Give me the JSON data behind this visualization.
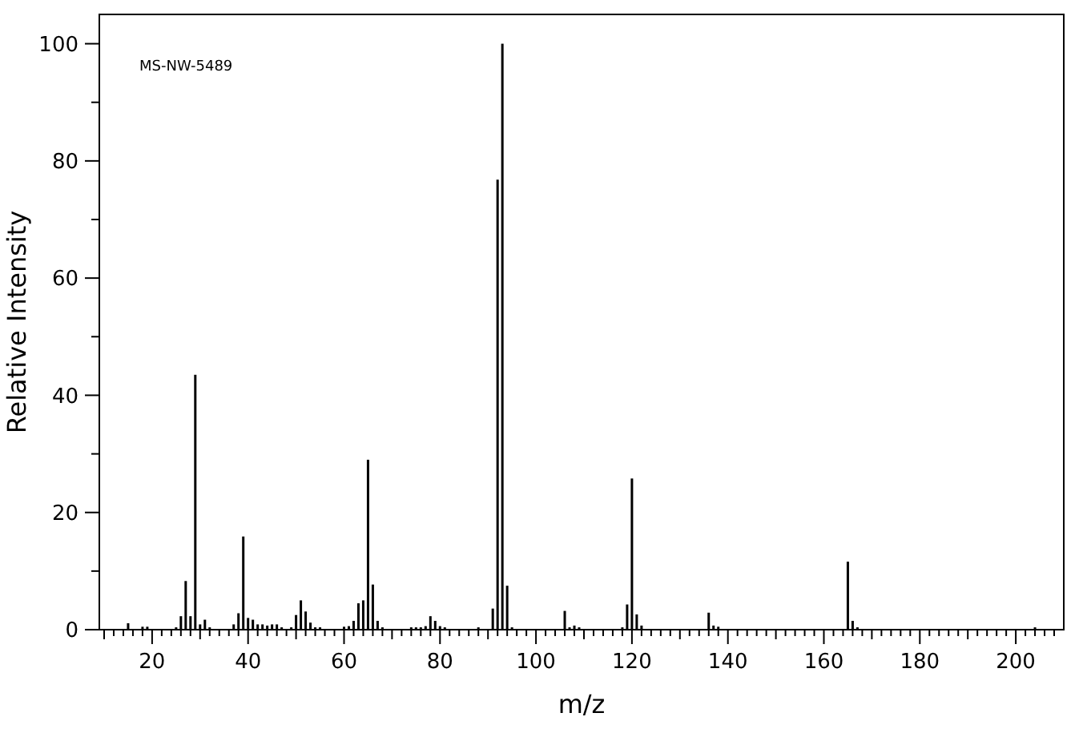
{
  "chart_data": {
    "type": "bar",
    "xlabel": "m/z",
    "ylabel": "Relative Intensity",
    "annotations": [
      "MS-NW-5489"
    ],
    "x": [
      15,
      18,
      19,
      25,
      26,
      27,
      28,
      29,
      30,
      31,
      32,
      37,
      38,
      39,
      40,
      41,
      42,
      43,
      44,
      45,
      46,
      47,
      49,
      50,
      51,
      52,
      53,
      54,
      55,
      60,
      61,
      62,
      63,
      64,
      65,
      66,
      67,
      68,
      74,
      75,
      76,
      77,
      78,
      79,
      80,
      81,
      88,
      91,
      92,
      93,
      94,
      95,
      106,
      107,
      108,
      109,
      118,
      119,
      120,
      121,
      122,
      136,
      137,
      138,
      165,
      166,
      167,
      204
    ],
    "values": [
      1.1,
      0.5,
      0.5,
      0.4,
      2.3,
      8.3,
      2.3,
      43.5,
      0.9,
      1.7,
      0.4,
      0.9,
      2.8,
      15.9,
      2.0,
      1.7,
      0.9,
      0.9,
      0.7,
      0.9,
      0.9,
      0.4,
      0.4,
      2.5,
      5.0,
      3.1,
      1.2,
      0.4,
      0.4,
      0.5,
      0.6,
      1.5,
      4.5,
      5.0,
      29,
      7.7,
      1.5,
      0.4,
      0.4,
      0.4,
      0.4,
      0.6,
      2.3,
      1.5,
      0.6,
      0.4,
      0.4,
      3.6,
      76.8,
      100,
      7.5,
      0.4,
      3.2,
      0.4,
      0.7,
      0.4,
      0.4,
      4.3,
      25.8,
      2.6,
      0.7,
      2.9,
      0.7,
      0.5,
      11.6,
      1.5,
      0.4,
      0.4
    ],
    "color": "#000000",
    "xlim": [
      9,
      210
    ],
    "xticks": [
      {
        "value": 10,
        "label": null
      },
      {
        "value": 12,
        "label": null
      },
      {
        "value": 14,
        "label": null
      },
      {
        "value": 16,
        "label": null
      },
      {
        "value": 18,
        "label": null
      },
      20,
      {
        "value": 22,
        "label": null
      },
      {
        "value": 24,
        "label": null
      },
      {
        "value": 26,
        "label": null
      },
      {
        "value": 28,
        "label": null
      },
      {
        "value": 30,
        "label": null
      },
      {
        "value": 32,
        "label": null
      },
      {
        "value": 34,
        "label": null
      },
      {
        "value": 36,
        "label": null
      },
      {
        "value": 38,
        "label": null
      },
      40,
      {
        "value": 42,
        "label": null
      },
      {
        "value": 44,
        "label": null
      },
      {
        "value": 46,
        "label": null
      },
      {
        "value": 48,
        "label": null
      },
      {
        "value": 50,
        "label": null
      },
      {
        "value": 52,
        "label": null
      },
      {
        "value": 54,
        "label": null
      },
      {
        "value": 56,
        "label": null
      },
      {
        "value": 58,
        "label": null
      },
      60,
      {
        "value": 62,
        "label": null
      },
      {
        "value": 64,
        "label": null
      },
      {
        "value": 66,
        "label": null
      },
      {
        "value": 68,
        "label": null
      },
      {
        "value": 70,
        "label": null
      },
      {
        "value": 72,
        "label": null
      },
      {
        "value": 74,
        "label": null
      },
      {
        "value": 76,
        "label": null
      },
      {
        "value": 78,
        "label": null
      },
      80,
      {
        "value": 82,
        "label": null
      },
      {
        "value": 84,
        "label": null
      },
      {
        "value": 86,
        "label": null
      },
      {
        "value": 88,
        "label": null
      },
      {
        "value": 90,
        "label": null
      },
      {
        "value": 92,
        "label": null
      },
      {
        "value": 94,
        "label": null
      },
      {
        "value": 96,
        "label": null
      },
      {
        "value": 98,
        "label": null
      },
      100,
      {
        "value": 102,
        "label": null
      },
      {
        "value": 104,
        "label": null
      },
      {
        "value": 106,
        "label": null
      },
      {
        "value": 108,
        "label": null
      },
      {
        "value": 110,
        "label": null
      },
      {
        "value": 112,
        "label": null
      },
      {
        "value": 114,
        "label": null
      },
      {
        "value": 116,
        "label": null
      },
      {
        "value": 118,
        "label": null
      },
      120,
      {
        "value": 122,
        "label": null
      },
      {
        "value": 124,
        "label": null
      },
      {
        "value": 126,
        "label": null
      },
      {
        "value": 128,
        "label": null
      },
      {
        "value": 130,
        "label": null
      },
      {
        "value": 132,
        "label": null
      },
      {
        "value": 134,
        "label": null
      },
      {
        "value": 136,
        "label": null
      },
      {
        "value": 138,
        "label": null
      },
      140,
      {
        "value": 142,
        "label": null
      },
      {
        "value": 144,
        "label": null
      },
      {
        "value": 146,
        "label": null
      },
      {
        "value": 148,
        "label": null
      },
      {
        "value": 150,
        "label": null
      },
      {
        "value": 152,
        "label": null
      },
      {
        "value": 154,
        "label": null
      },
      {
        "value": 156,
        "label": null
      },
      {
        "value": 158,
        "label": null
      },
      160,
      {
        "value": 162,
        "label": null
      },
      {
        "value": 164,
        "label": null
      },
      {
        "value": 166,
        "label": null
      },
      {
        "value": 168,
        "label": null
      },
      {
        "value": 170,
        "label": null
      },
      {
        "value": 172,
        "label": null
      },
      {
        "value": 174,
        "label": null
      },
      {
        "value": 176,
        "label": null
      },
      {
        "value": 178,
        "label": null
      },
      180,
      {
        "value": 182,
        "label": null
      },
      {
        "value": 184,
        "label": null
      },
      {
        "value": 186,
        "label": null
      },
      {
        "value": 188,
        "label": null
      },
      {
        "value": 190,
        "label": null
      },
      {
        "value": 192,
        "label": null
      },
      {
        "value": 194,
        "label": null
      },
      {
        "value": 196,
        "label": null
      },
      {
        "value": 198,
        "label": null
      },
      200,
      {
        "value": 202,
        "label": null
      },
      {
        "value": 204,
        "label": null
      },
      {
        "value": 206,
        "label": null
      },
      {
        "value": 208,
        "label": null
      }
    ],
    "ylim": [
      0,
      105
    ],
    "yticks": [
      0,
      {
        "value": 10,
        "label": null
      },
      20,
      {
        "value": 30,
        "label": null
      },
      40,
      {
        "value": 50,
        "label": null
      },
      60,
      {
        "value": 70,
        "label": null
      },
      80,
      {
        "value": 90,
        "label": null
      },
      100
    ]
  }
}
